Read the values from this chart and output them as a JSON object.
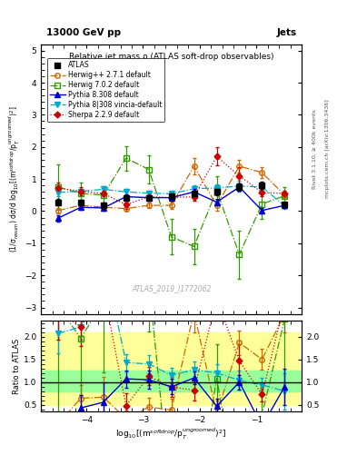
{
  "title": "Relative jet mass ρ (ATLAS soft-drop observables)",
  "top_left_label": "13000 GeV pp",
  "top_right_label": "Jets",
  "right_label1": "Rivet 3.1.10, ≥ 400k events",
  "right_label2": "mcplots.cern.ch [arXiv:1306.3436]",
  "watermark": "ATLAS_2019_I1772062",
  "ylabel_main": "(1/σ$_{resum}$) dσ/d log$_{10}$[(m$^{soft drop}$/p$_T^{ungroomed}$)$^2$]",
  "ylabel_ratio": "Ratio to ATLAS",
  "xlabel": "log$_{10}$[(m$^{soft drop}$/p$_T^{ungroomed}$)$^2$]",
  "xlim": [
    -4.8,
    -0.2
  ],
  "ylim_main": [
    -3.2,
    5.2
  ],
  "ylim_ratio": [
    0.35,
    2.35
  ],
  "yticks_main": [
    -3,
    -2,
    -1,
    0,
    1,
    2,
    3,
    4,
    5
  ],
  "yticks_ratio": [
    0.5,
    1.0,
    1.5,
    2.0
  ],
  "xticks": [
    -4,
    -3,
    -2,
    -1
  ],
  "x_values": [
    -4.5,
    -4.1,
    -3.7,
    -3.3,
    -2.9,
    -2.5,
    -2.1,
    -1.7,
    -1.3,
    -0.9,
    -0.5
  ],
  "atlas_y": [
    0.28,
    0.28,
    0.18,
    0.42,
    0.4,
    0.47,
    0.55,
    0.6,
    0.75,
    0.8,
    0.2
  ],
  "atlas_yerr": [
    0.1,
    0.08,
    0.08,
    0.08,
    0.08,
    0.08,
    0.08,
    0.1,
    0.12,
    0.12,
    0.08
  ],
  "herwig271_y": [
    0.02,
    0.18,
    0.12,
    0.08,
    0.18,
    0.18,
    1.4,
    0.18,
    1.4,
    1.2,
    0.5
  ],
  "herwig271_yerr": [
    0.08,
    0.08,
    0.08,
    0.08,
    0.08,
    0.12,
    0.25,
    0.18,
    0.2,
    0.18,
    0.08
  ],
  "herwig702_y": [
    0.75,
    0.55,
    0.5,
    1.65,
    1.3,
    -0.8,
    -1.1,
    0.65,
    -1.35,
    0.22,
    0.48
  ],
  "herwig702_yerr": [
    0.7,
    0.35,
    0.28,
    0.38,
    0.45,
    0.55,
    0.55,
    0.45,
    0.75,
    0.45,
    0.28
  ],
  "pythia8308_y": [
    -0.22,
    0.12,
    0.1,
    0.45,
    0.42,
    0.42,
    0.6,
    0.28,
    0.75,
    0.02,
    0.18
  ],
  "pythia8308_yerr": [
    0.1,
    0.08,
    0.08,
    0.08,
    0.08,
    0.08,
    0.08,
    0.1,
    0.12,
    0.08,
    0.08
  ],
  "pythia8vincia_y": [
    0.58,
    0.62,
    0.68,
    0.6,
    0.56,
    0.54,
    0.7,
    0.72,
    0.78,
    0.75,
    0.16
  ],
  "pythia8vincia_yerr": [
    0.12,
    0.08,
    0.08,
    0.08,
    0.08,
    0.08,
    0.1,
    0.12,
    0.16,
    0.12,
    0.08
  ],
  "sherpa229_y": [
    0.72,
    0.62,
    0.55,
    0.2,
    0.45,
    0.42,
    0.45,
    1.7,
    1.1,
    0.58,
    0.55
  ],
  "sherpa229_yerr": [
    0.18,
    0.12,
    0.08,
    0.12,
    0.08,
    0.1,
    0.12,
    0.28,
    0.28,
    0.12,
    0.08
  ],
  "atlas_color": "#000000",
  "herwig271_color": "#cc6600",
  "herwig702_color": "#339900",
  "pythia8308_color": "#0000cc",
  "pythia8vincia_color": "#00aacc",
  "sherpa229_color": "#cc0000",
  "band_yellow": "#ffff99",
  "band_green": "#99ff99",
  "band_yellow_inner_lo": 0.7,
  "band_yellow_inner_hi": 1.5,
  "band_yellow_outer_lo": 0.5,
  "band_yellow_outer_hi": 2.1,
  "band_green_lo": 0.8,
  "band_green_hi": 1.25
}
